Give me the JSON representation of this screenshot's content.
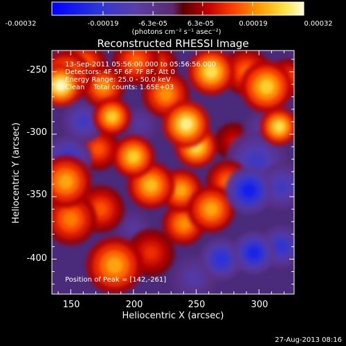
{
  "chart_data": {
    "type": "heatmap",
    "title": "Reconstructed RHESSI Image",
    "xlabel": "Heliocentric X (arcsec)",
    "ylabel": "Heliocentric Y (arcsec)",
    "xlim": [
      135,
      328
    ],
    "ylim": [
      -428,
      -233
    ],
    "x_ticks": [
      150,
      200,
      250,
      300
    ],
    "y_ticks": [
      -250,
      -300,
      -350,
      -400
    ],
    "colorbar": {
      "range": [
        -0.00032,
        0.00032
      ],
      "tick_labels": [
        "-0.00032",
        "-0.00019",
        "-6.3e-05",
        "6.3e-05",
        "0.00019",
        "0.00032"
      ],
      "unit_label": "(photons cm⁻² s⁻¹ asec⁻²)"
    },
    "annotations": [
      "13-Sep-2011 05:56:00.000 to 05:56:56.000",
      "Detectors: 4F 5F 6F 7F 8F, Att 0",
      "Energy Range: 25.0 - 50.0 keV",
      "Clean    Total counts: 1.65E+03"
    ],
    "peak_label": "Position of Peak = [142,-261]",
    "peak": {
      "x": 142,
      "y": -261
    },
    "blobs": [
      {
        "x": 142,
        "y": -261,
        "v": 1.0,
        "s": 9
      },
      {
        "x": 146,
        "y": -254,
        "v": 0.75,
        "s": 11
      },
      {
        "x": 160,
        "y": -245,
        "v": 0.65,
        "s": 10
      },
      {
        "x": 176,
        "y": -262,
        "v": 0.7,
        "s": 9
      },
      {
        "x": 183,
        "y": -286,
        "v": 0.85,
        "s": 8
      },
      {
        "x": 202,
        "y": -242,
        "v": 0.6,
        "s": 10
      },
      {
        "x": 218,
        "y": -245,
        "v": 0.55,
        "s": 9
      },
      {
        "x": 226,
        "y": -268,
        "v": 0.7,
        "s": 10
      },
      {
        "x": 242,
        "y": -292,
        "v": 0.95,
        "s": 10
      },
      {
        "x": 250,
        "y": -310,
        "v": 0.9,
        "s": 9
      },
      {
        "x": 262,
        "y": -250,
        "v": 0.9,
        "s": 10
      },
      {
        "x": 290,
        "y": -250,
        "v": 0.6,
        "s": 10
      },
      {
        "x": 306,
        "y": -262,
        "v": 0.85,
        "s": 11
      },
      {
        "x": 316,
        "y": -294,
        "v": 0.9,
        "s": 8
      },
      {
        "x": 323,
        "y": -255,
        "v": 0.55,
        "s": 8
      },
      {
        "x": 200,
        "y": -318,
        "v": 0.85,
        "s": 9
      },
      {
        "x": 172,
        "y": -312,
        "v": 0.55,
        "s": 9
      },
      {
        "x": 214,
        "y": -341,
        "v": 0.8,
        "s": 10
      },
      {
        "x": 238,
        "y": -345,
        "v": 0.75,
        "s": 9
      },
      {
        "x": 262,
        "y": -360,
        "v": 0.75,
        "s": 10
      },
      {
        "x": 275,
        "y": -338,
        "v": 0.6,
        "s": 9
      },
      {
        "x": 240,
        "y": -372,
        "v": 0.7,
        "s": 9
      },
      {
        "x": 146,
        "y": -338,
        "v": 0.75,
        "s": 11
      },
      {
        "x": 150,
        "y": -368,
        "v": 0.65,
        "s": 11
      },
      {
        "x": 174,
        "y": -360,
        "v": 0.55,
        "s": 10
      },
      {
        "x": 185,
        "y": -405,
        "v": 0.75,
        "s": 12
      },
      {
        "x": 214,
        "y": -395,
        "v": 0.45,
        "s": 10
      },
      {
        "x": 280,
        "y": -306,
        "v": 0.35,
        "s": 8
      },
      {
        "x": 160,
        "y": -290,
        "v": -0.55,
        "s": 9
      },
      {
        "x": 148,
        "y": -320,
        "v": -0.65,
        "s": 10
      },
      {
        "x": 206,
        "y": -292,
        "v": -0.35,
        "s": 8
      },
      {
        "x": 298,
        "y": -322,
        "v": -0.55,
        "s": 13
      },
      {
        "x": 292,
        "y": -345,
        "v": -0.85,
        "s": 10
      },
      {
        "x": 318,
        "y": -342,
        "v": -0.55,
        "s": 10
      },
      {
        "x": 296,
        "y": -395,
        "v": -0.8,
        "s": 9
      },
      {
        "x": 318,
        "y": -390,
        "v": -0.65,
        "s": 9
      },
      {
        "x": 270,
        "y": -400,
        "v": -0.7,
        "s": 9
      },
      {
        "x": 248,
        "y": -415,
        "v": -0.4,
        "s": 10
      },
      {
        "x": 200,
        "y": -375,
        "v": -0.35,
        "s": 8
      },
      {
        "x": 302,
        "y": -295,
        "v": -0.35,
        "s": 8
      }
    ]
  },
  "footer": {
    "timestamp": "27-Aug-2013 08:16"
  }
}
